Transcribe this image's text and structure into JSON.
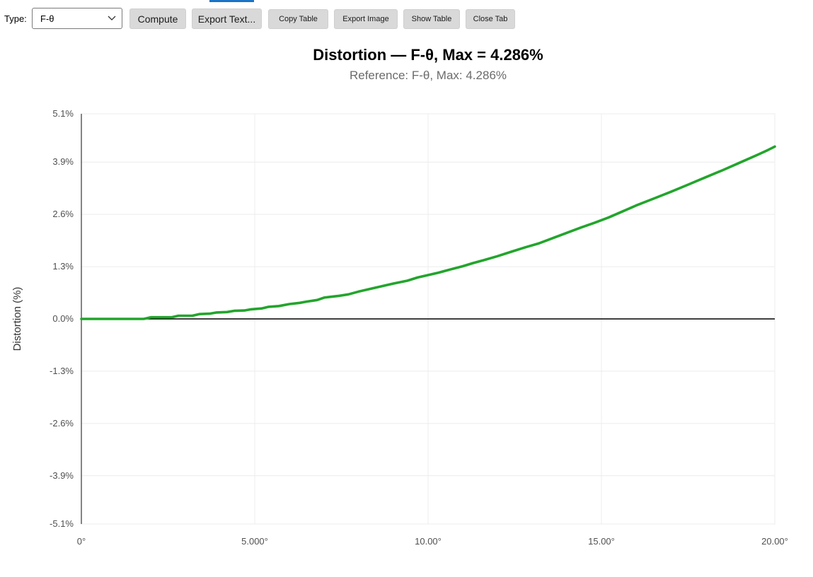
{
  "toolbar": {
    "type_label": "Type:",
    "type_value": "F-θ",
    "compute_label": "Compute",
    "export_text_label": "Export Text...",
    "copy_table_label": "Copy Table",
    "export_image_label": "Export Image",
    "show_table_label": "Show Table",
    "close_tab_label": "Close Tab"
  },
  "chart_data": {
    "type": "line",
    "title": "Distortion — F-θ, Max = 4.286%",
    "subtitle": "Reference: F-θ, Max: 4.286%",
    "xlabel": "",
    "ylabel": "Distortion (%)",
    "xlim": [
      0,
      20
    ],
    "ylim": [
      -5.1,
      5.1
    ],
    "x_ticks": [
      0,
      5,
      10,
      15,
      20
    ],
    "x_tick_labels": [
      "0°",
      "5.000°",
      "10.00°",
      "15.00°",
      "20.00°"
    ],
    "y_ticks": [
      5.1,
      3.9,
      2.6,
      1.3,
      0.0,
      -1.3,
      -2.6,
      -3.9,
      -5.1
    ],
    "y_tick_labels": [
      "5.1%",
      "3.9%",
      "2.6%",
      "1.3%",
      "0.0%",
      "-1.3%",
      "-2.6%",
      "-3.9%",
      "-5.1%"
    ],
    "grid": true,
    "line_color": "#22a52c",
    "zero_line_color": "#000000",
    "series": [
      {
        "x": [
          0,
          1.8,
          2.0,
          2.6,
          2.8,
          3.2,
          3.4,
          3.7,
          3.9,
          4.2,
          4.4,
          4.7,
          4.9,
          5.2,
          5.4,
          5.7,
          6.0,
          6.3,
          6.5,
          6.8,
          7.0,
          7.2,
          7.4,
          7.7,
          8.0,
          8.3,
          8.7,
          9.0,
          9.4,
          9.7,
          10.0,
          10.3,
          10.6,
          11.0,
          11.3,
          11.6,
          12.0,
          12.4,
          12.8,
          13.2,
          13.6,
          14.0,
          14.4,
          14.8,
          15.2,
          15.6,
          16.0,
          16.5,
          17.0,
          17.5,
          18.0,
          18.5,
          19.0,
          19.5,
          19.8,
          20.0
        ],
        "y": [
          0.0,
          0.0,
          0.04,
          0.04,
          0.08,
          0.08,
          0.12,
          0.13,
          0.16,
          0.17,
          0.2,
          0.21,
          0.24,
          0.26,
          0.3,
          0.32,
          0.37,
          0.4,
          0.43,
          0.47,
          0.53,
          0.55,
          0.57,
          0.61,
          0.68,
          0.74,
          0.82,
          0.88,
          0.95,
          1.03,
          1.09,
          1.15,
          1.22,
          1.31,
          1.39,
          1.46,
          1.56,
          1.67,
          1.78,
          1.88,
          2.01,
          2.14,
          2.27,
          2.39,
          2.52,
          2.67,
          2.82,
          2.99,
          3.16,
          3.34,
          3.52,
          3.7,
          3.89,
          4.08,
          4.2,
          4.286
        ]
      }
    ]
  }
}
